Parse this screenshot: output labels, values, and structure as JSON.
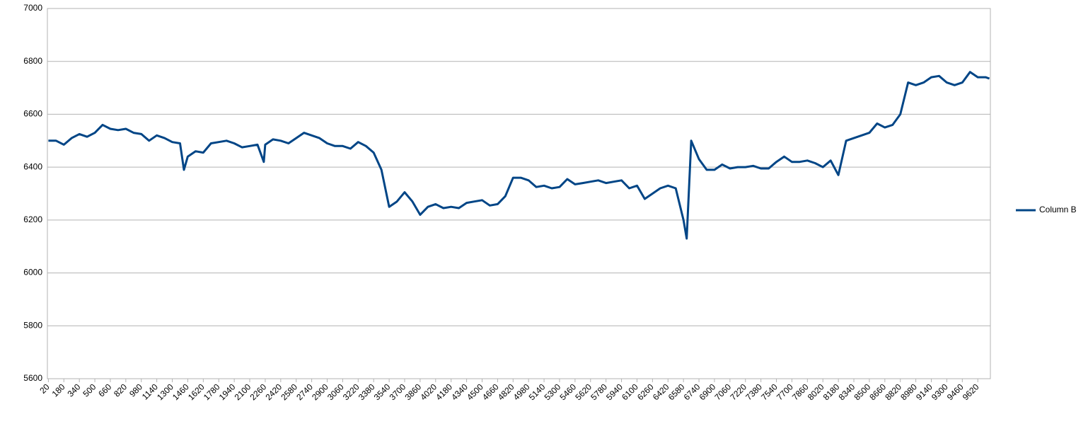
{
  "chart_data": {
    "type": "line",
    "x": [
      20,
      100,
      180,
      260,
      340,
      420,
      500,
      580,
      660,
      740,
      820,
      900,
      980,
      1060,
      1140,
      1220,
      1300,
      1380,
      1420,
      1460,
      1540,
      1620,
      1700,
      1780,
      1860,
      1940,
      2020,
      2100,
      2180,
      2245,
      2260,
      2340,
      2420,
      2500,
      2580,
      2660,
      2740,
      2820,
      2900,
      2980,
      3060,
      3140,
      3220,
      3300,
      3380,
      3460,
      3540,
      3620,
      3700,
      3780,
      3860,
      3940,
      4020,
      4100,
      4180,
      4260,
      4340,
      4420,
      4500,
      4580,
      4660,
      4740,
      4820,
      4900,
      4980,
      5060,
      5140,
      5220,
      5300,
      5380,
      5460,
      5540,
      5620,
      5700,
      5780,
      5860,
      5940,
      6020,
      6100,
      6180,
      6260,
      6340,
      6420,
      6500,
      6580,
      6613,
      6660,
      6740,
      6820,
      6900,
      6980,
      7060,
      7140,
      7220,
      7300,
      7380,
      7460,
      7540,
      7620,
      7700,
      7780,
      7860,
      7940,
      8020,
      8100,
      8180,
      8260,
      8340,
      8420,
      8500,
      8580,
      8660,
      8740,
      8820,
      8900,
      8980,
      9060,
      9140,
      9220,
      9300,
      9380,
      9460,
      9540,
      9620,
      9700,
      9740
    ],
    "series": [
      {
        "name": "Column B",
        "color": "#004586",
        "values": [
          6500,
          6500,
          6485,
          6510,
          6525,
          6515,
          6530,
          6560,
          6545,
          6540,
          6545,
          6530,
          6525,
          6500,
          6520,
          6510,
          6495,
          6490,
          6390,
          6440,
          6460,
          6455,
          6490,
          6495,
          6500,
          6490,
          6475,
          6480,
          6485,
          6420,
          6485,
          6505,
          6500,
          6490,
          6510,
          6530,
          6520,
          6510,
          6490,
          6480,
          6480,
          6470,
          6495,
          6480,
          6455,
          6390,
          6250,
          6270,
          6305,
          6270,
          6220,
          6250,
          6260,
          6245,
          6250,
          6245,
          6265,
          6270,
          6275,
          6255,
          6260,
          6290,
          6360,
          6360,
          6350,
          6325,
          6330,
          6320,
          6325,
          6355,
          6335,
          6340,
          6345,
          6350,
          6340,
          6345,
          6350,
          6320,
          6330,
          6280,
          6300,
          6320,
          6330,
          6320,
          6200,
          6130,
          6500,
          6430,
          6390,
          6390,
          6410,
          6395,
          6400,
          6400,
          6405,
          6395,
          6395,
          6420,
          6440,
          6420,
          6420,
          6425,
          6415,
          6400,
          6425,
          6370,
          6500,
          6510,
          6520,
          6530,
          6565,
          6550,
          6560,
          6600,
          6720,
          6710,
          6720,
          6740,
          6745,
          6720,
          6710,
          6720,
          6760,
          6740,
          6740,
          6735
        ]
      }
    ],
    "xlim": [
      10,
      9750
    ],
    "xticks": [
      20,
      180,
      340,
      500,
      660,
      820,
      980,
      1140,
      1300,
      1460,
      1620,
      1780,
      1940,
      2100,
      2260,
      2420,
      2580,
      2740,
      2900,
      3060,
      3220,
      3380,
      3540,
      3700,
      3860,
      4020,
      4180,
      4340,
      4500,
      4660,
      4820,
      4980,
      5140,
      5300,
      5460,
      5620,
      5780,
      5940,
      6100,
      6260,
      6420,
      6580,
      6740,
      6900,
      7060,
      7220,
      7380,
      7540,
      7700,
      7860,
      8020,
      8180,
      8340,
      8500,
      8660,
      8820,
      8980,
      9140,
      9300,
      9460,
      9620
    ],
    "ylim": [
      5600,
      7000
    ],
    "yticks": [
      5600,
      5800,
      6000,
      6200,
      6400,
      6600,
      6800,
      7000
    ],
    "grid": true,
    "legend": "right"
  }
}
